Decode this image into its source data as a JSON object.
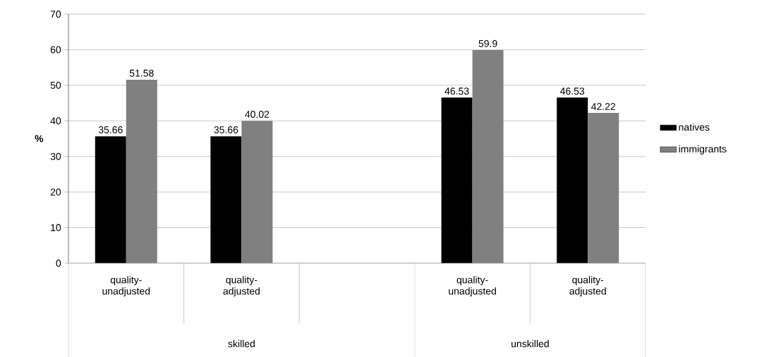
{
  "chart_data": {
    "type": "bar",
    "ylabel": "%",
    "categories": [
      "quality-unadjusted",
      "quality-adjusted",
      null,
      "quality-unadjusted",
      "quality-adjusted"
    ],
    "series": [
      {
        "name": "natives",
        "color": "#000000",
        "values": [
          35.66,
          35.66,
          null,
          46.53,
          46.53
        ]
      },
      {
        "name": "immigrants",
        "color": "#808080",
        "values": [
          51.58,
          40.02,
          null,
          59.9,
          42.22
        ]
      }
    ],
    "ylim": [
      0,
      70
    ],
    "yticks": [
      0,
      10,
      20,
      30,
      40,
      50,
      60,
      70
    ],
    "grid": "y",
    "legend": "right",
    "data_labels": true,
    "annotations": [
      "skilled",
      "unskilled"
    ]
  }
}
